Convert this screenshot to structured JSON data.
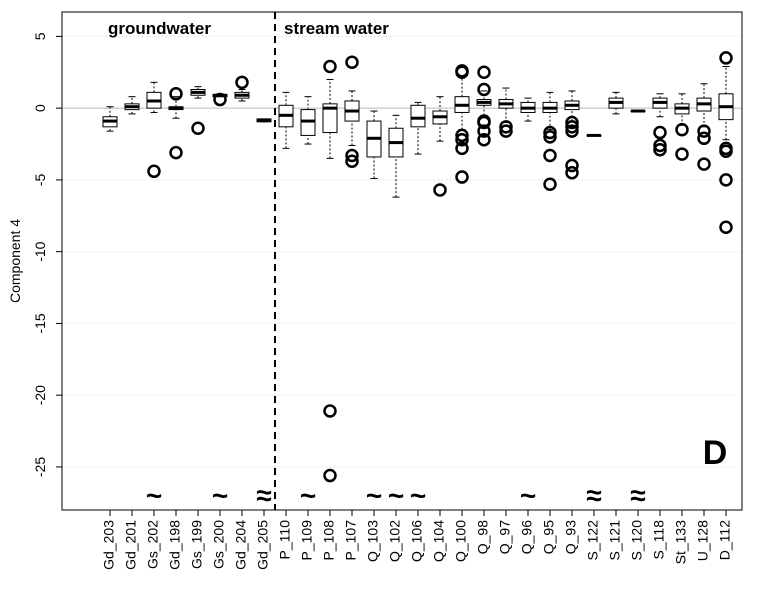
{
  "chart_data": {
    "type": "boxplot",
    "y_label": "Component 4",
    "annotation": "D",
    "ylim": [
      -28,
      6.7
    ],
    "yticks": [
      5,
      0,
      -5,
      -10,
      -15,
      -20,
      -25
    ],
    "grid": true,
    "hline": 0,
    "color": "#000000",
    "categories": [
      "Gd_203",
      "Gd_201",
      "Gs_202",
      "Gd_198",
      "Gs_199",
      "Gs_200",
      "Gd_204",
      "Gd_205",
      "P_110",
      "P_109",
      "P_108",
      "P_107",
      "Q_103",
      "Q_102",
      "Q_106",
      "Q_104",
      "Q_100",
      "Q_98",
      "Q_97",
      "Q_96",
      "Q_95",
      "Q_93",
      "S_122",
      "S_121",
      "S_120",
      "S_118",
      "St_133",
      "U_128",
      "D_112"
    ],
    "groups": [
      {
        "name": "groundwater",
        "start": "Gd_203",
        "end": "Gd_205"
      },
      {
        "name": "stream water",
        "start": "P_110",
        "end": "D_112"
      }
    ],
    "breaks": [
      {
        "category": "Gs_202",
        "label": "~"
      },
      {
        "category": "Gs_200",
        "label": "~"
      },
      {
        "category": "Gd_205",
        "label": "≈"
      },
      {
        "category": "P_109",
        "label": "~"
      },
      {
        "category": "Q_103",
        "label": "~"
      },
      {
        "category": "Q_102",
        "label": "~"
      },
      {
        "category": "Q_106",
        "label": "~"
      },
      {
        "category": "Q_96",
        "label": "~"
      },
      {
        "category": "S_122",
        "label": "≈"
      },
      {
        "category": "S_120",
        "label": "≈"
      }
    ],
    "boxes": [
      {
        "low": -1.6,
        "q1": -1.3,
        "median": -0.9,
        "q3": -0.6,
        "high": 0.1,
        "outliers": []
      },
      {
        "low": -0.4,
        "q1": -0.1,
        "median": 0.1,
        "q3": 0.3,
        "high": 0.8,
        "outliers": []
      },
      {
        "low": -0.3,
        "q1": 0,
        "median": 0.5,
        "q3": 1.1,
        "high": 1.8,
        "outliers": [
          -4.4
        ]
      },
      {
        "low": -0.7,
        "q1": -0.1,
        "median": 0,
        "q3": 0.1,
        "high": 0.8,
        "outliers": [
          1.0,
          -3.1
        ]
      },
      {
        "low": 0.7,
        "q1": 0.9,
        "median": 1.1,
        "q3": 1.3,
        "high": 1.5,
        "outliers": [
          -1.4
        ]
      },
      {
        "low": 0.8,
        "q1": 0.8,
        "median": 0.9,
        "q3": 0.95,
        "high": 1.0,
        "outliers": [
          0.6
        ]
      },
      {
        "low": 0.5,
        "q1": 0.7,
        "median": 0.9,
        "q3": 1.1,
        "high": 1.3,
        "outliers": [
          1.8
        ]
      },
      {
        "low": -0.95,
        "q1": -0.95,
        "median": -0.85,
        "q3": -0.75,
        "high": -0.75,
        "outliers": []
      },
      {
        "low": -2.8,
        "q1": -1.3,
        "median": -0.5,
        "q3": 0.2,
        "high": 1.1,
        "outliers": []
      },
      {
        "low": -2.5,
        "q1": -1.9,
        "median": -0.9,
        "q3": -0.1,
        "high": 0.8,
        "outliers": []
      },
      {
        "low": -3.5,
        "q1": -1.7,
        "median": 0,
        "q3": 0.3,
        "high": 2.0,
        "outliers": [
          2.9,
          -21.1,
          -25.6
        ]
      },
      {
        "low": -2.6,
        "q1": -0.9,
        "median": -0.2,
        "q3": 0.5,
        "high": 1.2,
        "outliers": [
          3.2,
          -3.3,
          -3.7
        ]
      },
      {
        "low": -4.9,
        "q1": -3.4,
        "median": -2.1,
        "q3": -0.9,
        "high": -0.2,
        "outliers": []
      },
      {
        "low": -6.2,
        "q1": -3.4,
        "median": -2.4,
        "q3": -1.4,
        "high": -0.5,
        "outliers": []
      },
      {
        "low": -3.2,
        "q1": -1.3,
        "median": -0.7,
        "q3": 0.2,
        "high": 0.4,
        "outliers": []
      },
      {
        "low": -2.3,
        "q1": -1.1,
        "median": -0.6,
        "q3": -0.2,
        "high": 0.8,
        "outliers": [
          -5.7
        ]
      },
      {
        "low": -1.5,
        "q1": -0.3,
        "median": 0.2,
        "q3": 0.8,
        "high": 2.2,
        "outliers": [
          2.6,
          2.5,
          -1.9,
          -2.2,
          -2.8,
          -4.8
        ]
      },
      {
        "low": -0.5,
        "q1": 0.2,
        "median": 0.4,
        "q3": 0.6,
        "high": 1.2,
        "outliers": [
          2.5,
          1.3,
          -0.9,
          -1.0,
          -1.6,
          -2.2
        ]
      },
      {
        "low": -1.0,
        "q1": 0,
        "median": 0.3,
        "q3": 0.6,
        "high": 1.4,
        "outliers": [
          -1.3,
          -1.6
        ]
      },
      {
        "low": -0.9,
        "q1": -0.3,
        "median": 0,
        "q3": 0.4,
        "high": 0.7,
        "outliers": []
      },
      {
        "low": -1.5,
        "q1": -0.3,
        "median": 0,
        "q3": 0.4,
        "high": 1.1,
        "outliers": [
          -1.7,
          -2.0,
          -3.3,
          -5.3
        ]
      },
      {
        "low": -0.9,
        "q1": -0.1,
        "median": 0.2,
        "q3": 0.5,
        "high": 1.2,
        "outliers": [
          -1.0,
          -1.3,
          -1.6,
          -4.0,
          -4.5
        ]
      },
      {
        "low": -1.9,
        "q1": -1.9,
        "median": -1.9,
        "q3": -1.9,
        "high": -1.9,
        "outliers": []
      },
      {
        "low": -0.4,
        "q1": 0,
        "median": 0.4,
        "q3": 0.7,
        "high": 1.1,
        "outliers": []
      },
      {
        "low": -0.2,
        "q1": -0.2,
        "median": -0.2,
        "q3": -0.2,
        "high": -0.2,
        "outliers": []
      },
      {
        "low": -0.6,
        "q1": 0,
        "median": 0.4,
        "q3": 0.7,
        "high": 1.0,
        "outliers": [
          -1.7,
          -2.6,
          -2.9
        ]
      },
      {
        "low": -1.2,
        "q1": -0.4,
        "median": 0,
        "q3": 0.3,
        "high": 1.0,
        "outliers": [
          -1.5,
          -3.2
        ]
      },
      {
        "low": -1.3,
        "q1": -0.2,
        "median": 0.3,
        "q3": 0.7,
        "high": 1.7,
        "outliers": [
          -1.6,
          -2.1,
          -3.9
        ]
      },
      {
        "low": -2.2,
        "q1": -0.8,
        "median": 0.1,
        "q3": 1.0,
        "high": 2.9,
        "outliers": [
          3.5,
          -2.8,
          -3.0,
          -5.0,
          -8.3
        ]
      }
    ]
  }
}
